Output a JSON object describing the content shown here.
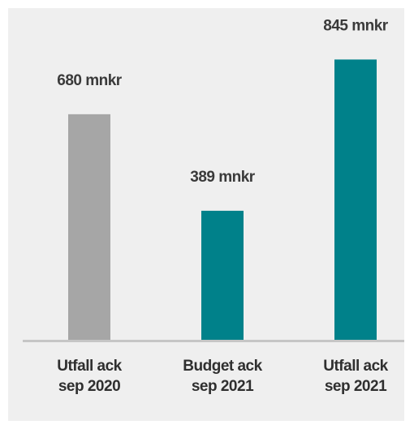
{
  "chart_data": {
    "type": "bar",
    "categories": [
      [
        "Utfall ack",
        "sep 2020"
      ],
      [
        "Budget ack",
        "sep 2021"
      ],
      [
        "Utfall ack",
        "sep 2021"
      ]
    ],
    "values": [
      680,
      389,
      845
    ],
    "value_labels": [
      "680 mnkr",
      "389 mnkr",
      "845 mnkr"
    ],
    "bar_colors": [
      "#a6a6a6",
      "#00818a",
      "#00818a"
    ],
    "axis_color": "#c6c6c6",
    "background_color": "#efefef",
    "title": "",
    "xlabel": "",
    "ylabel": "",
    "ylim": [
      0,
      1000
    ],
    "grid": false
  }
}
